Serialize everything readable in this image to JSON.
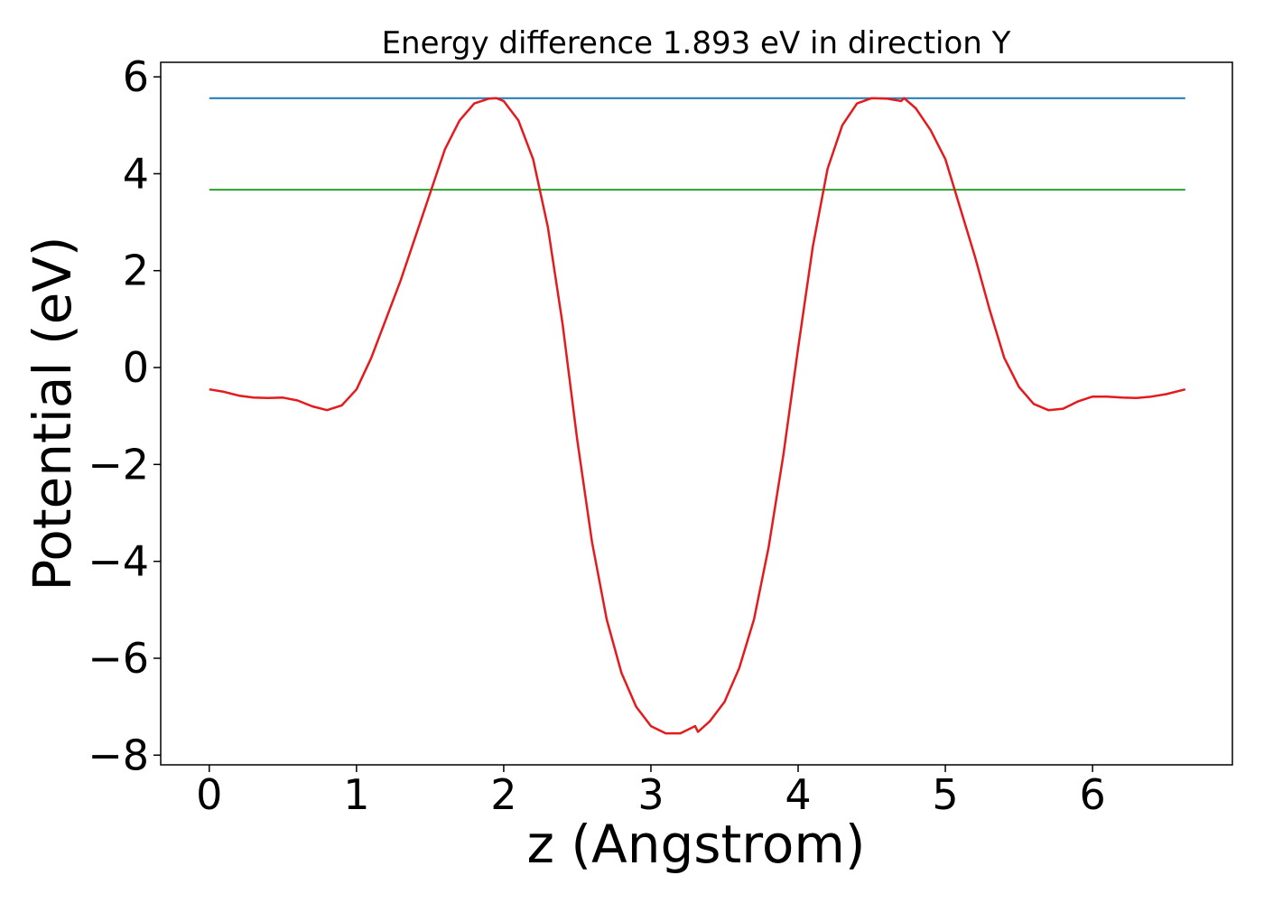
{
  "chart_data": {
    "type": "line",
    "title": "Energy difference 1.893 eV in direction Y",
    "xlabel": "z (Angstrom)",
    "ylabel": "Potential (eV)",
    "xlim": [
      -0.33,
      6.95
    ],
    "ylim": [
      -8.2,
      6.3
    ],
    "x_ticks": [
      0,
      1,
      2,
      3,
      4,
      5,
      6
    ],
    "x_tick_labels": [
      "0",
      "1",
      "2",
      "3",
      "4",
      "5",
      "6"
    ],
    "y_ticks": [
      6,
      4,
      2,
      0,
      -2,
      -4,
      -6,
      -8
    ],
    "y_tick_labels": [
      "6",
      "4",
      "2",
      "0",
      "−2",
      "−4",
      "−6",
      "−8"
    ],
    "grid": false,
    "legend": "none",
    "series": [
      {
        "color": "#1f77b4",
        "x": [
          0,
          6.63
        ],
        "y": [
          5.56,
          5.56
        ]
      },
      {
        "color": "#2ca02c",
        "x": [
          0,
          6.63
        ],
        "y": [
          3.67,
          3.67
        ]
      },
      {
        "color": "#e41a1c",
        "x": [
          0,
          0.1,
          0.2,
          0.3,
          0.4,
          0.5,
          0.6,
          0.7,
          0.8,
          0.9,
          1.0,
          1.1,
          1.2,
          1.3,
          1.4,
          1.5,
          1.6,
          1.7,
          1.8,
          1.9,
          1.95,
          2.0,
          2.1,
          2.2,
          2.3,
          2.4,
          2.5,
          2.6,
          2.7,
          2.8,
          2.9,
          3.0,
          3.1,
          3.2,
          3.3,
          3.32,
          3.4,
          3.5,
          3.6,
          3.7,
          3.8,
          3.9,
          4.0,
          4.1,
          4.2,
          4.3,
          4.4,
          4.5,
          4.6,
          4.7,
          4.72,
          4.8,
          4.9,
          5.0,
          5.1,
          5.2,
          5.3,
          5.4,
          5.5,
          5.6,
          5.7,
          5.8,
          5.9,
          6.0,
          6.1,
          6.2,
          6.3,
          6.4,
          6.5,
          6.63
        ],
        "y": [
          -0.45,
          -0.5,
          -0.58,
          -0.62,
          -0.63,
          -0.62,
          -0.68,
          -0.8,
          -0.88,
          -0.78,
          -0.45,
          0.2,
          1.0,
          1.8,
          2.7,
          3.6,
          4.5,
          5.1,
          5.45,
          5.55,
          5.56,
          5.5,
          5.1,
          4.3,
          2.9,
          0.9,
          -1.5,
          -3.6,
          -5.2,
          -6.3,
          -7.0,
          -7.4,
          -7.55,
          -7.55,
          -7.4,
          -7.52,
          -7.3,
          -6.9,
          -6.2,
          -5.2,
          -3.7,
          -1.8,
          0.4,
          2.5,
          4.1,
          5.0,
          5.45,
          5.56,
          5.55,
          5.5,
          5.56,
          5.35,
          4.9,
          4.3,
          3.3,
          2.3,
          1.2,
          0.2,
          -0.4,
          -0.75,
          -0.88,
          -0.85,
          -0.7,
          -0.6,
          -0.6,
          -0.62,
          -0.63,
          -0.6,
          -0.55,
          -0.45
        ]
      }
    ]
  }
}
